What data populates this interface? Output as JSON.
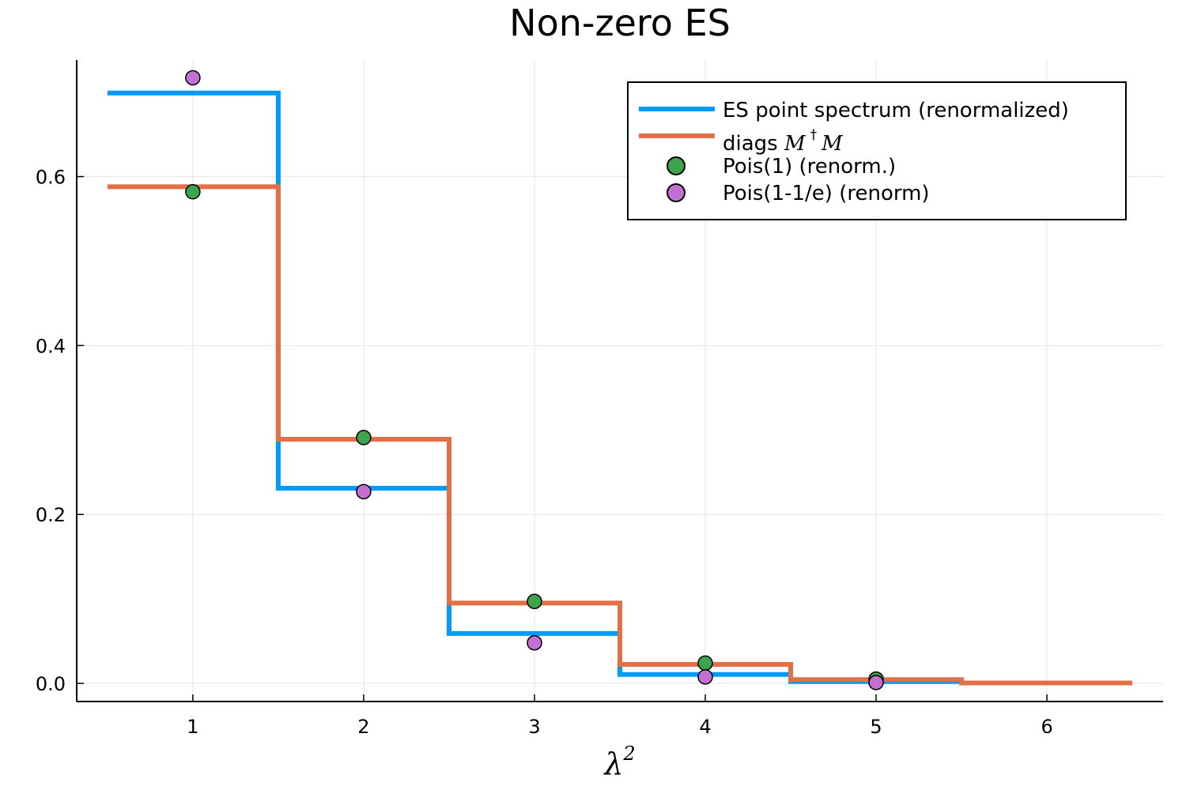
{
  "chart_data": {
    "type": "line",
    "title": "Non-zero ES",
    "xlabel": "λ²",
    "ylabel": "",
    "xlim": [
      0.32,
      6.68
    ],
    "ylim": [
      -0.0215,
      0.738
    ],
    "xticks": [
      1,
      2,
      3,
      4,
      5,
      6
    ],
    "yticks": [
      0.0,
      0.2,
      0.4,
      0.6
    ],
    "ytick_labels": [
      "0.0",
      "0.2",
      "0.4",
      "0.6"
    ],
    "grid": true,
    "legend_position": "top-right",
    "step_series": [
      {
        "name": "ES point spectrum (renormalized)",
        "color": "#009af9",
        "x": [
          1,
          2,
          3,
          4,
          5
        ],
        "values": [
          0.699,
          0.231,
          0.059,
          0.0105,
          0.0022
        ]
      },
      {
        "name": "diags M † M",
        "color": "#e26f46",
        "x": [
          1,
          2,
          3,
          4,
          5,
          6
        ],
        "values": [
          0.588,
          0.289,
          0.095,
          0.0225,
          0.0045,
          0.0005
        ]
      }
    ],
    "scatter_series": [
      {
        "name": "Pois(1) (renorm.)",
        "color": "#3da44d",
        "x": [
          1,
          2,
          3,
          4,
          5
        ],
        "values": [
          0.582,
          0.291,
          0.097,
          0.024,
          0.005
        ]
      },
      {
        "name": "Pois(1-1/e) (renorm)",
        "color": "#c271d2",
        "x": [
          1,
          2,
          3,
          4,
          5
        ],
        "values": [
          0.717,
          0.227,
          0.048,
          0.0076,
          0.001
        ]
      }
    ]
  },
  "legend": {
    "entry1": "ES point spectrum (renormalized)",
    "entry2_prefix": "diags ",
    "entry2_math_1": "M",
    "entry2_math_dagger": "†",
    "entry2_math_2": "M",
    "entry3": "Pois(1) (renorm.)",
    "entry4": "Pois(1-1/e) (renorm)"
  },
  "axes": {
    "xlabel_base": "λ",
    "xlabel_sup": "2"
  }
}
